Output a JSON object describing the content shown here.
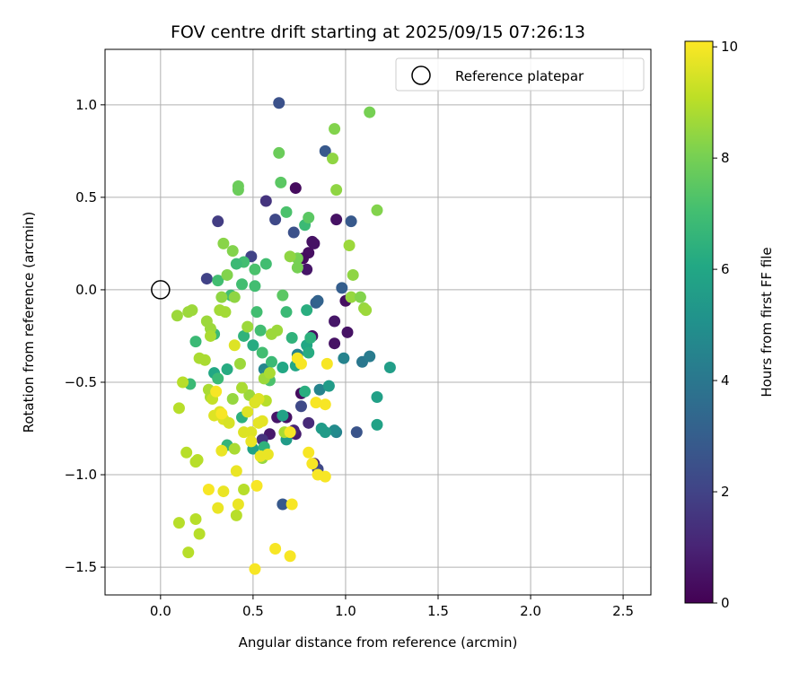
{
  "chart_data": {
    "type": "scatter",
    "title": "FOV centre drift starting at 2025/09/15 07:26:13",
    "xlabel": "Angular distance from reference (arcmin)",
    "ylabel": "Rotation from reference (arcmin)",
    "xlim": [
      -0.3,
      2.65
    ],
    "ylim": [
      -1.65,
      1.3
    ],
    "xticks": [
      0.0,
      0.5,
      1.0,
      1.5,
      2.0,
      2.5
    ],
    "xtick_labels": [
      "0.0",
      "0.5",
      "1.0",
      "1.5",
      "2.0",
      "2.5"
    ],
    "yticks": [
      -1.5,
      -1.0,
      -0.5,
      0.0,
      0.5,
      1.0
    ],
    "ytick_labels": [
      "−1.5",
      "−1.0",
      "−0.5",
      "0.0",
      "0.5",
      "1.0"
    ],
    "grid": true,
    "legend": {
      "position": "top-right",
      "entries": [
        "Reference platepar"
      ]
    },
    "reference_point": {
      "x": 0.0,
      "y": 0.0
    },
    "colorbar": {
      "label": "Hours from first FF file",
      "colormap": "viridis",
      "range": [
        0,
        10.1
      ],
      "ticks": [
        0,
        2,
        4,
        6,
        8,
        10
      ],
      "tick_labels": [
        "0",
        "2",
        "4",
        "6",
        "8",
        "10"
      ]
    },
    "points": [
      [
        0.73,
        0.55,
        0.3
      ],
      [
        0.8,
        0.2,
        0.4
      ],
      [
        0.82,
        0.26,
        0.5
      ],
      [
        0.83,
        0.25,
        0.5
      ],
      [
        0.79,
        0.11,
        0.6
      ],
      [
        0.77,
        0.17,
        0.3
      ],
      [
        0.95,
        0.38,
        0.5
      ],
      [
        1.0,
        -0.06,
        0.4
      ],
      [
        1.01,
        -0.23,
        0.5
      ],
      [
        0.94,
        -0.17,
        0.6
      ],
      [
        0.94,
        -0.29,
        0.5
      ],
      [
        0.82,
        -0.25,
        0.4
      ],
      [
        0.76,
        -0.56,
        0.3
      ],
      [
        0.63,
        -0.69,
        0.6
      ],
      [
        0.73,
        -0.78,
        0.8
      ],
      [
        0.59,
        -0.78,
        0.7
      ],
      [
        0.55,
        -0.81,
        1.5
      ],
      [
        0.68,
        -0.69,
        0.5
      ],
      [
        0.72,
        -0.76,
        1.0
      ],
      [
        0.8,
        -0.72,
        1.2
      ],
      [
        0.83,
        -0.94,
        1.0
      ],
      [
        0.72,
        0.31,
        2.5
      ],
      [
        0.57,
        0.48,
        1.5
      ],
      [
        0.31,
        0.37,
        1.8
      ],
      [
        0.62,
        0.38,
        2.2
      ],
      [
        0.49,
        0.18,
        2.0
      ],
      [
        0.25,
        0.06,
        2.0
      ],
      [
        0.64,
        1.01,
        2.5
      ],
      [
        0.89,
        0.75,
        2.8
      ],
      [
        1.03,
        0.37,
        2.8
      ],
      [
        0.98,
        0.01,
        3.0
      ],
      [
        0.84,
        -0.07,
        3.0
      ],
      [
        0.85,
        -0.06,
        3.2
      ],
      [
        0.76,
        -0.63,
        2.2
      ],
      [
        0.66,
        -1.16,
        2.8
      ],
      [
        1.06,
        -0.77,
        2.6
      ],
      [
        0.85,
        -0.97,
        2.2
      ],
      [
        0.95,
        -0.77,
        4.5
      ],
      [
        0.99,
        -0.37,
        4.5
      ],
      [
        1.09,
        -0.39,
        4.0
      ],
      [
        1.13,
        -0.36,
        4.2
      ],
      [
        0.86,
        -0.54,
        4.5
      ],
      [
        0.74,
        -0.35,
        4.5
      ],
      [
        0.56,
        -0.43,
        4.6
      ],
      [
        0.94,
        -0.76,
        4.8
      ],
      [
        1.24,
        -0.42,
        5.6
      ],
      [
        1.17,
        -0.58,
        5.7
      ],
      [
        1.17,
        -0.73,
        5.8
      ],
      [
        0.91,
        -0.52,
        5.5
      ],
      [
        0.87,
        -0.75,
        5.5
      ],
      [
        0.89,
        -0.77,
        5.5
      ],
      [
        0.68,
        -0.81,
        5.5
      ],
      [
        0.5,
        -0.86,
        5.8
      ],
      [
        0.66,
        -0.68,
        5.8
      ],
      [
        0.66,
        -0.42,
        6.0
      ],
      [
        0.73,
        -0.41,
        6.0
      ],
      [
        0.78,
        -0.55,
        6.3
      ],
      [
        0.79,
        -0.3,
        6.0
      ],
      [
        0.8,
        -0.34,
        6.2
      ],
      [
        0.81,
        -0.26,
        6.4
      ],
      [
        0.79,
        -0.11,
        6.3
      ],
      [
        0.68,
        -0.12,
        6.8
      ],
      [
        0.71,
        -0.26,
        6.5
      ],
      [
        0.6,
        -0.39,
        6.8
      ],
      [
        0.5,
        -0.3,
        6.2
      ],
      [
        0.45,
        -0.25,
        6.5
      ],
      [
        0.44,
        -0.69,
        6.4
      ],
      [
        0.56,
        -0.85,
        6.5
      ],
      [
        0.36,
        -0.84,
        6.6
      ],
      [
        0.36,
        -0.43,
        6.2
      ],
      [
        0.29,
        -0.45,
        6.0
      ],
      [
        0.29,
        -0.24,
        6.8
      ],
      [
        0.31,
        -0.48,
        6.8
      ],
      [
        0.19,
        -0.28,
        6.8
      ],
      [
        0.16,
        -0.51,
        6.8
      ],
      [
        0.57,
        0.14,
        7.0
      ],
      [
        0.51,
        0.11,
        7.2
      ],
      [
        0.45,
        0.15,
        7.0
      ],
      [
        0.41,
        0.14,
        6.8
      ],
      [
        0.44,
        0.03,
        7.0
      ],
      [
        0.38,
        -0.03,
        7.0
      ],
      [
        0.31,
        0.05,
        7.0
      ],
      [
        0.51,
        0.02,
        7.0
      ],
      [
        0.52,
        -0.12,
        7.0
      ],
      [
        0.54,
        -0.22,
        7.0
      ],
      [
        0.55,
        -0.34,
        7.0
      ],
      [
        0.59,
        -0.49,
        7.2
      ],
      [
        0.66,
        -0.03,
        7.5
      ],
      [
        0.78,
        0.35,
        6.8
      ],
      [
        0.8,
        0.39,
        7.5
      ],
      [
        0.68,
        0.42,
        7.2
      ],
      [
        0.65,
        0.58,
        7.5
      ],
      [
        0.64,
        0.74,
        7.8
      ],
      [
        0.42,
        0.54,
        7.8
      ],
      [
        0.42,
        0.56,
        7.8
      ],
      [
        0.93,
        0.71,
        8.4
      ],
      [
        0.94,
        0.87,
        8.2
      ],
      [
        1.13,
        0.96,
        8.0
      ],
      [
        0.95,
        0.54,
        8.4
      ],
      [
        1.17,
        0.43,
        8.2
      ],
      [
        1.02,
        0.24,
        8.6
      ],
      [
        1.04,
        0.08,
        8.4
      ],
      [
        1.03,
        -0.04,
        8.5
      ],
      [
        1.08,
        -0.04,
        8.2
      ],
      [
        1.1,
        -0.1,
        8.5
      ],
      [
        1.11,
        -0.11,
        8.6
      ],
      [
        0.74,
        0.12,
        8.0
      ],
      [
        0.74,
        0.17,
        8.0
      ],
      [
        0.7,
        0.18,
        8.4
      ],
      [
        0.34,
        0.25,
        8.3
      ],
      [
        0.39,
        0.21,
        8.2
      ],
      [
        0.36,
        0.08,
        8.2
      ],
      [
        0.33,
        -0.04,
        8.4
      ],
      [
        0.4,
        -0.04,
        8.4
      ],
      [
        0.27,
        -0.21,
        8.6
      ],
      [
        0.25,
        -0.17,
        8.6
      ],
      [
        0.32,
        -0.11,
        8.7
      ],
      [
        0.35,
        -0.12,
        8.7
      ],
      [
        0.09,
        -0.14,
        8.6
      ],
      [
        0.15,
        -0.12,
        8.6
      ],
      [
        0.17,
        -0.11,
        8.6
      ],
      [
        0.47,
        -0.2,
        8.6
      ],
      [
        0.43,
        -0.4,
        8.6
      ],
      [
        0.48,
        -0.57,
        8.6
      ],
      [
        0.44,
        -0.53,
        8.8
      ],
      [
        0.56,
        -0.48,
        8.6
      ],
      [
        0.59,
        -0.45,
        8.8
      ],
      [
        0.6,
        -0.24,
        8.6
      ],
      [
        0.63,
        -0.22,
        8.6
      ],
      [
        0.67,
        -0.77,
        8.8
      ],
      [
        0.57,
        -0.6,
        9.0
      ],
      [
        0.55,
        -0.91,
        8.5
      ],
      [
        0.39,
        -0.59,
        8.5
      ],
      [
        0.4,
        -0.86,
        8.8
      ],
      [
        0.27,
        -0.58,
        8.8
      ],
      [
        0.24,
        -0.38,
        8.8
      ],
      [
        0.21,
        -0.37,
        8.8
      ],
      [
        0.26,
        -0.54,
        8.8
      ],
      [
        0.27,
        -0.25,
        8.8
      ],
      [
        0.28,
        -0.59,
        9.2
      ],
      [
        0.45,
        -1.08,
        9.0
      ],
      [
        0.41,
        -1.22,
        9.0
      ],
      [
        0.12,
        -0.5,
        9.0
      ],
      [
        0.1,
        -0.64,
        9.0
      ],
      [
        0.14,
        -0.88,
        9.0
      ],
      [
        0.19,
        -0.93,
        9.0
      ],
      [
        0.2,
        -0.92,
        9.0
      ],
      [
        0.21,
        -1.32,
        9.0
      ],
      [
        0.19,
        -1.24,
        9.0
      ],
      [
        0.15,
        -1.42,
        9.0
      ],
      [
        0.1,
        -1.26,
        9.0
      ],
      [
        0.4,
        -0.3,
        9.6
      ],
      [
        0.29,
        -0.68,
        9.6
      ],
      [
        0.32,
        -0.66,
        9.6
      ],
      [
        0.34,
        -0.7,
        9.6
      ],
      [
        0.37,
        -0.72,
        9.5
      ],
      [
        0.45,
        -0.77,
        9.6
      ],
      [
        0.49,
        -0.77,
        9.6
      ],
      [
        0.51,
        -0.61,
        9.6
      ],
      [
        0.53,
        -0.59,
        9.6
      ],
      [
        0.47,
        -0.66,
        9.6
      ],
      [
        0.53,
        -0.72,
        9.7
      ],
      [
        0.55,
        -0.71,
        9.7
      ],
      [
        0.54,
        -0.9,
        9.8
      ],
      [
        0.58,
        -0.89,
        9.8
      ],
      [
        0.49,
        -0.82,
        9.8
      ],
      [
        0.41,
        -0.98,
        9.8
      ],
      [
        0.42,
        -1.16,
        9.8
      ],
      [
        0.33,
        -0.87,
        9.8
      ],
      [
        0.34,
        -1.09,
        9.8
      ],
      [
        0.31,
        -1.18,
        9.8
      ],
      [
        0.26,
        -1.08,
        10.0
      ],
      [
        0.3,
        -0.55,
        10.0
      ],
      [
        0.33,
        -0.67,
        10.0
      ],
      [
        0.74,
        -0.37,
        10.0
      ],
      [
        0.76,
        -0.4,
        10.0
      ],
      [
        0.8,
        -0.88,
        10.0
      ],
      [
        0.82,
        -0.94,
        10.0
      ],
      [
        0.85,
        -1.0,
        10.0
      ],
      [
        0.89,
        -1.01,
        10.0
      ],
      [
        0.84,
        -0.61,
        10.0
      ],
      [
        0.89,
        -0.62,
        10.0
      ],
      [
        0.9,
        -0.4,
        10.0
      ],
      [
        0.7,
        -0.77,
        10.0
      ],
      [
        0.71,
        -1.16,
        10.0
      ],
      [
        0.62,
        -1.4,
        10.0
      ],
      [
        0.7,
        -1.44,
        10.0
      ],
      [
        0.51,
        -1.51,
        10.0
      ],
      [
        0.52,
        -1.06,
        10.0
      ]
    ]
  }
}
